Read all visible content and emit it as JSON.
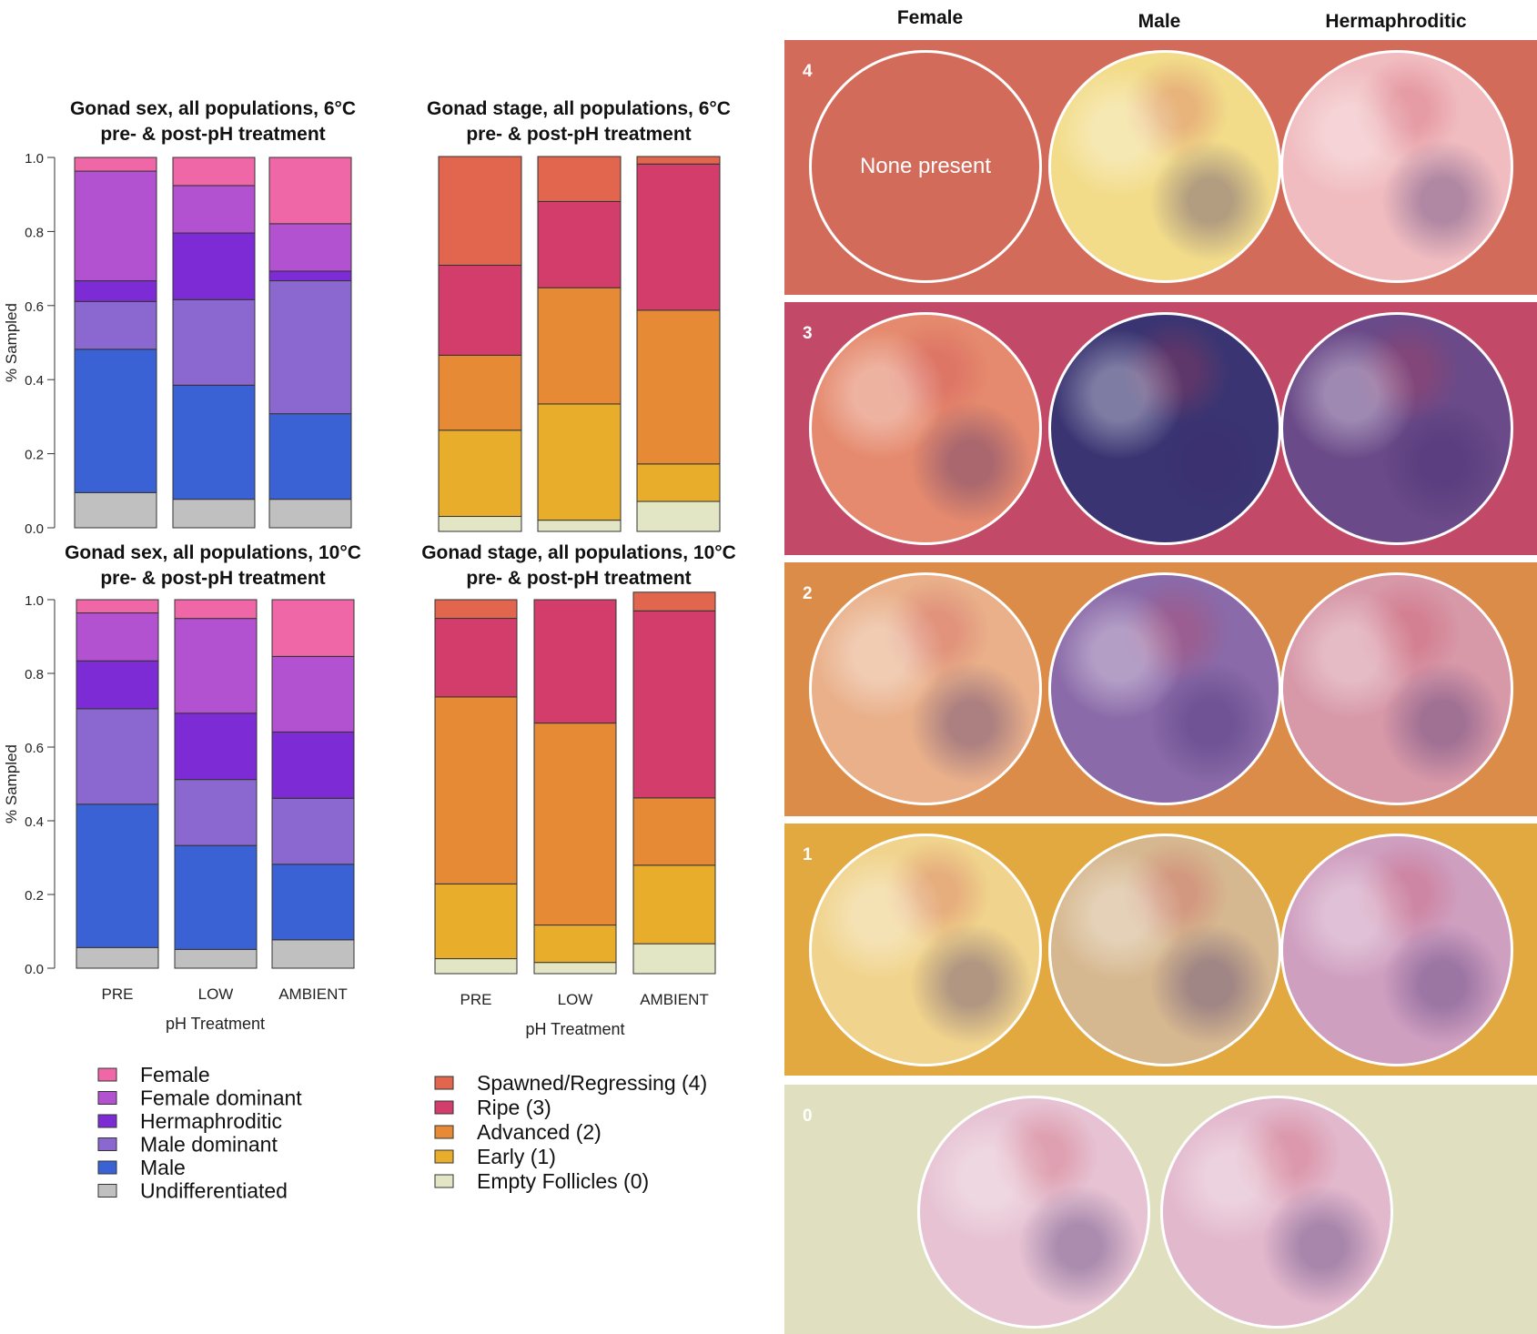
{
  "chart_data": [
    {
      "type": "bar",
      "stacked": true,
      "title": "Gonad sex, all populations, 6°C",
      "subtitle": "pre- & post-pH treatment",
      "ylabel": "% Sampled",
      "xlabel": "",
      "ylim": [
        0,
        1
      ],
      "yticks": [
        "0.0",
        "0.2",
        "0.4",
        "0.6",
        "0.8",
        "1.0"
      ],
      "categories": [
        "PRE",
        "LOW",
        "AMBIENT"
      ],
      "show_xticks": false,
      "series": [
        {
          "name": "Undifferentiated",
          "color": "#c0c0c0",
          "values": [
            0.095,
            0.077,
            0.077
          ]
        },
        {
          "name": "Male",
          "color": "#3a62d4",
          "values": [
            0.387,
            0.308,
            0.231
          ]
        },
        {
          "name": "Male dominant",
          "color": "#8b68cf",
          "values": [
            0.129,
            0.231,
            0.359
          ]
        },
        {
          "name": "Hermaphroditic",
          "color": "#7d2bd4",
          "values": [
            0.056,
            0.18,
            0.026
          ]
        },
        {
          "name": "Female dominant",
          "color": "#b352d0",
          "values": [
            0.296,
            0.128,
            0.128
          ]
        },
        {
          "name": "Female",
          "color": "#ef67a6",
          "values": [
            0.037,
            0.076,
            0.179
          ]
        }
      ]
    },
    {
      "type": "bar",
      "stacked": true,
      "title": "Gonad stage, all populations, 6°C",
      "subtitle": "pre- & post-pH treatment",
      "ylabel": "",
      "xlabel": "",
      "ylim": [
        0,
        1
      ],
      "categories": [
        "PRE",
        "LOW",
        "AMBIENT"
      ],
      "show_xticks": false,
      "series": [
        {
          "name": "Empty Follicles (0)",
          "color": "#e2e6c4",
          "values": [
            0.04,
            0.03,
            0.08
          ]
        },
        {
          "name": "Early (1)",
          "color": "#e9ad2c",
          "values": [
            0.23,
            0.31,
            0.1
          ]
        },
        {
          "name": "Advanced (2)",
          "color": "#e68a36",
          "values": [
            0.2,
            0.31,
            0.41
          ]
        },
        {
          "name": "Ripe (3)",
          "color": "#d23d6b",
          "values": [
            0.24,
            0.23,
            0.39
          ]
        },
        {
          "name": "Spawned/Regressing (4)",
          "color": "#e2664e",
          "values": [
            0.29,
            0.12,
            0.02
          ]
        }
      ]
    },
    {
      "type": "bar",
      "stacked": true,
      "title": "Gonad sex, all populations, 10°C",
      "subtitle": "pre- & post-pH treatment",
      "ylabel": "% Sampled",
      "xlabel": "pH Treatment",
      "ylim": [
        0,
        1
      ],
      "yticks": [
        "0.0",
        "0.2",
        "0.4",
        "0.6",
        "0.8",
        "1.0"
      ],
      "categories": [
        "PRE",
        "LOW",
        "AMBIENT"
      ],
      "show_xticks": true,
      "series": [
        {
          "name": "Undifferentiated",
          "color": "#c0c0c0",
          "values": [
            0.056,
            0.051,
            0.077
          ]
        },
        {
          "name": "Male",
          "color": "#3a62d4",
          "values": [
            0.389,
            0.282,
            0.205
          ]
        },
        {
          "name": "Male dominant",
          "color": "#8b68cf",
          "values": [
            0.259,
            0.179,
            0.179
          ]
        },
        {
          "name": "Hermaphroditic",
          "color": "#7d2bd4",
          "values": [
            0.13,
            0.18,
            0.18
          ]
        },
        {
          "name": "Female dominant",
          "color": "#b352d0",
          "values": [
            0.13,
            0.257,
            0.205
          ]
        },
        {
          "name": "Female",
          "color": "#ef67a6",
          "values": [
            0.036,
            0.051,
            0.154
          ]
        }
      ]
    },
    {
      "type": "bar",
      "stacked": true,
      "title": "Gonad stage, all populations, 10°C",
      "subtitle": "pre- & post-pH treatment",
      "ylabel": "",
      "xlabel": "pH Treatment",
      "ylim": [
        0,
        1
      ],
      "categories": [
        "PRE",
        "LOW",
        "AMBIENT"
      ],
      "show_xticks": true,
      "series": [
        {
          "name": "Empty Follicles (0)",
          "color": "#e2e6c4",
          "values": [
            0.04,
            0.03,
            0.08
          ]
        },
        {
          "name": "Early (1)",
          "color": "#e9ad2c",
          "values": [
            0.2,
            0.1,
            0.21
          ]
        },
        {
          "name": "Advanced (2)",
          "color": "#e68a36",
          "values": [
            0.5,
            0.54,
            0.18
          ]
        },
        {
          "name": "Ripe (3)",
          "color": "#d23d6b",
          "values": [
            0.21,
            0.33,
            0.5
          ]
        },
        {
          "name": "Spawned/Regressing (4)",
          "color": "#e2664e",
          "values": [
            0.05,
            0.0,
            0.05
          ]
        }
      ]
    }
  ],
  "legends": {
    "sex": [
      {
        "label": "Female",
        "color": "#ef67a6"
      },
      {
        "label": "Female dominant",
        "color": "#b352d0"
      },
      {
        "label": "Hermaphroditic",
        "color": "#7d2bd4"
      },
      {
        "label": "Male dominant",
        "color": "#8b68cf"
      },
      {
        "label": "Male",
        "color": "#3a62d4"
      },
      {
        "label": "Undifferentiated",
        "color": "#c0c0c0"
      }
    ],
    "stage": [
      {
        "label": "Spawned/Regressing (4)",
        "color": "#e2664e"
      },
      {
        "label": "Ripe (3)",
        "color": "#d23d6b"
      },
      {
        "label": "Advanced (2)",
        "color": "#e68a36"
      },
      {
        "label": "Early (1)",
        "color": "#e9ad2c"
      },
      {
        "label": "Empty Follicles (0)",
        "color": "#e2e6c4"
      }
    ]
  },
  "micrographs": {
    "column_headers": [
      "Female",
      "Male",
      "Hermaphroditic"
    ],
    "none_text": "None present",
    "stages": [
      {
        "label": "4",
        "band_color": "#d36b5b",
        "female": "none",
        "male": "#f2dc8a",
        "herma": "#f0bcc0"
      },
      {
        "label": "3",
        "band_color": "#c24a68",
        "female": "#e58a6e",
        "male": "#3a3572",
        "herma": "#6a4a88"
      },
      {
        "label": "2",
        "band_color": "#da8c48",
        "female": "#e9b08a",
        "male": "#8a6aa8",
        "herma": "#d798a8"
      },
      {
        "label": "1",
        "band_color": "#e2a941",
        "female": "#f0d38c",
        "male": "#d6b890",
        "herma": "#cf9fc0"
      },
      {
        "label": "0",
        "band_color": "#e0e0c0",
        "female": "#e6c2d2",
        "male": "#e2b8cc",
        "herma": null
      }
    ]
  }
}
